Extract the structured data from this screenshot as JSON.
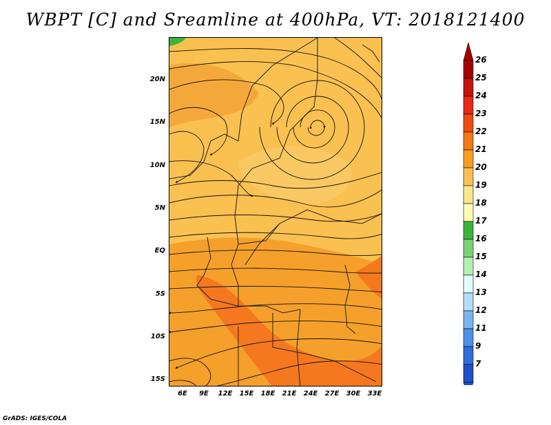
{
  "title": "WBPT [C] and Sreamline at 400hPa, VT: 2018121400",
  "footer": "GrADS: IGES/COLA",
  "map": {
    "lat_ticks": [
      "20N",
      "15N",
      "10N",
      "5N",
      "EQ",
      "5S",
      "10S",
      "15S"
    ],
    "lon_ticks": [
      "6E",
      "9E",
      "12E",
      "15E",
      "18E",
      "21E",
      "24E",
      "27E",
      "30E",
      "33E"
    ]
  },
  "colorbar": {
    "labels": [
      "26",
      "25",
      "24",
      "23",
      "22",
      "21",
      "20",
      "19",
      "18",
      "17",
      "16",
      "15",
      "14",
      "13",
      "12",
      "11",
      "9",
      "7"
    ],
    "colors": [
      "#a50000",
      "#c8100e",
      "#e62814",
      "#f04b0f",
      "#f57814",
      "#fa9c1e",
      "#fac050",
      "#fae68c",
      "#fffab4",
      "#3cb43c",
      "#78d278",
      "#b4f0b4",
      "#e1ffff",
      "#b4dcfa",
      "#78b4f0",
      "#4b91eb",
      "#2d6edc",
      "#1e50c8"
    ]
  }
}
